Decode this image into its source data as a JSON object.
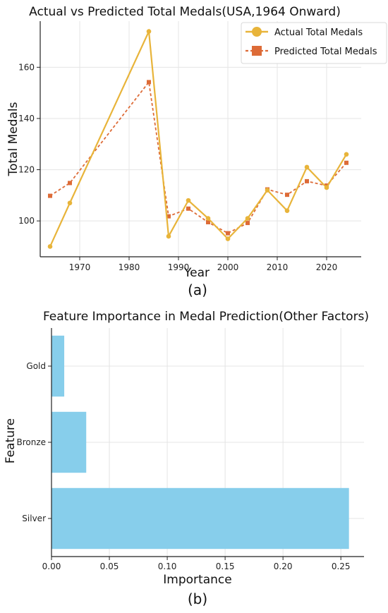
{
  "chart_data": [
    {
      "type": "line",
      "title": "Actual vs Predicted Total Medals(USA,1964 Onward)",
      "xlabel": "Year",
      "ylabel": "Total Medals",
      "caption": "(a)",
      "xlim": [
        1962,
        2027
      ],
      "ylim": [
        86,
        178
      ],
      "xticks": [
        1970,
        1980,
        1990,
        2000,
        2010,
        2020
      ],
      "yticks": [
        100,
        120,
        140,
        160
      ],
      "grid": true,
      "legend_position": "top-right",
      "x": [
        1964,
        1968,
        1984,
        1988,
        1992,
        1996,
        2000,
        2004,
        2008,
        2012,
        2016,
        2020,
        2024
      ],
      "series": [
        {
          "name": "Actual Total Medals",
          "color": "#E8B43A",
          "style": "solid",
          "marker": "circle",
          "values": [
            90,
            107,
            174,
            94,
            108,
            101,
            93,
            101,
            112,
            104,
            121,
            113,
            126
          ]
        },
        {
          "name": "Predicted Total Medals",
          "color": "#DD6B37",
          "style": "dashed",
          "marker": "square",
          "values": [
            109.8,
            114.8,
            154.2,
            101.8,
            104.8,
            99.5,
            95.2,
            99.2,
            112.3,
            110.2,
            115.5,
            113.8,
            122.7
          ]
        }
      ]
    },
    {
      "type": "bar",
      "orientation": "horizontal",
      "title": "Feature Importance in Medal Prediction(Other Factors)",
      "xlabel": "Importance",
      "ylabel": "Feature",
      "caption": "(b)",
      "categories": [
        "Gold",
        "Bronze",
        "Silver"
      ],
      "values": [
        0.011,
        0.03,
        0.257
      ],
      "xlim": [
        0,
        0.27
      ],
      "xticks": [
        0.0,
        0.05,
        0.1,
        0.15,
        0.2,
        0.25
      ],
      "xtick_labels": [
        "0.00",
        "0.05",
        "0.10",
        "0.15",
        "0.20",
        "0.25"
      ],
      "color": "#87CEEB",
      "grid": true
    }
  ]
}
